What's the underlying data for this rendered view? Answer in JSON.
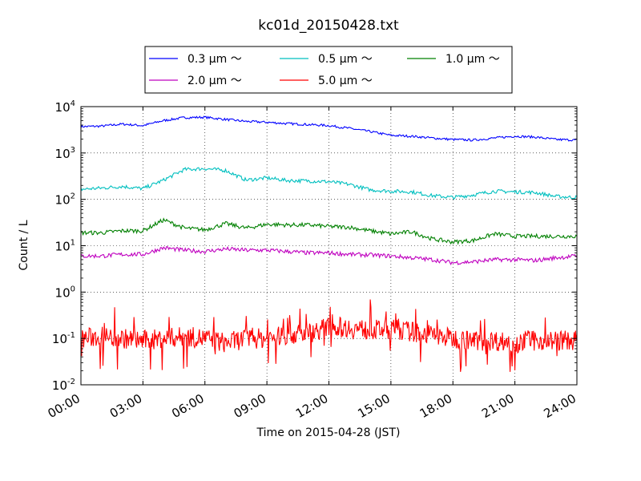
{
  "chart_data": {
    "type": "line",
    "title": "kc01d_20150428.txt",
    "xlabel": "Time on 2015-04-28 (JST)",
    "ylabel": "Count / L",
    "xlim": [
      "00:00",
      "24:00"
    ],
    "x_ticks": [
      "00:00",
      "03:00",
      "06:00",
      "09:00",
      "12:00",
      "15:00",
      "18:00",
      "21:00",
      "24:00"
    ],
    "yscale": "log",
    "ylim": [
      0.01,
      10000
    ],
    "y_ticks": [
      {
        "base": "10",
        "exp": "-2",
        "value": 0.01
      },
      {
        "base": "10",
        "exp": "-1",
        "value": 0.1
      },
      {
        "base": "10",
        "exp": "0",
        "value": 1
      },
      {
        "base": "10",
        "exp": "1",
        "value": 10
      },
      {
        "base": "10",
        "exp": "2",
        "value": 100
      },
      {
        "base": "10",
        "exp": "3",
        "value": 1000
      },
      {
        "base": "10",
        "exp": "4",
        "value": 10000
      }
    ],
    "grid": true,
    "legend_position": "top-center",
    "x": [
      "00:00",
      "01:00",
      "02:00",
      "03:00",
      "04:00",
      "05:00",
      "06:00",
      "07:00",
      "08:00",
      "09:00",
      "10:00",
      "11:00",
      "12:00",
      "13:00",
      "14:00",
      "15:00",
      "16:00",
      "17:00",
      "18:00",
      "19:00",
      "20:00",
      "21:00",
      "22:00",
      "23:00",
      "24:00"
    ],
    "series": [
      {
        "name": "0.3 μm ～",
        "color": "#0000ff",
        "values": [
          3700,
          3800,
          4200,
          3900,
          5000,
          5800,
          5900,
          5300,
          4800,
          4600,
          4300,
          4100,
          3900,
          3400,
          2900,
          2400,
          2300,
          2100,
          1950,
          1900,
          2100,
          2300,
          2200,
          1950,
          1900
        ]
      },
      {
        "name": "0.5 μm ～",
        "color": "#00bfbf",
        "values": [
          165,
          175,
          190,
          170,
          260,
          440,
          460,
          420,
          260,
          290,
          255,
          250,
          240,
          210,
          160,
          150,
          145,
          120,
          110,
          125,
          150,
          145,
          140,
          115,
          110
        ]
      },
      {
        "name": "1.0 μm ～",
        "color": "#008000",
        "values": [
          19,
          19,
          21,
          21,
          36,
          24,
          22,
          30,
          24,
          29,
          28,
          28,
          26,
          25,
          21,
          18,
          20,
          14,
          12,
          13,
          18,
          16,
          16,
          16,
          16
        ]
      },
      {
        "name": "2.0 μm ～",
        "color": "#bf00bf",
        "values": [
          6,
          6,
          6.5,
          6.5,
          9,
          8,
          7.5,
          8.5,
          8,
          8,
          7.5,
          7,
          7,
          6.5,
          6.3,
          6,
          5.5,
          5,
          4.3,
          4.5,
          5,
          5,
          4.8,
          5.5,
          6
        ]
      },
      {
        "name": "5.0 μm ～",
        "color": "#ff0000",
        "values": [
          0.1,
          0.11,
          0.1,
          0.09,
          0.1,
          0.11,
          0.1,
          0.08,
          0.1,
          0.1,
          0.12,
          0.13,
          0.18,
          0.17,
          0.15,
          0.16,
          0.14,
          0.12,
          0.1,
          0.09,
          0.09,
          0.08,
          0.09,
          0.09,
          0.09
        ]
      }
    ]
  }
}
